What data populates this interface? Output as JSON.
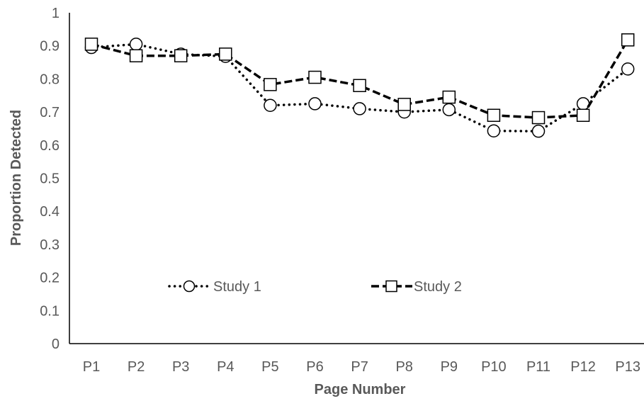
{
  "chart_data": {
    "type": "line",
    "title": "",
    "xlabel": "Page Number",
    "ylabel": "Proportion Detected",
    "ylim": [
      0,
      1
    ],
    "yticks": [
      "0",
      "0.1",
      "0.2",
      "0.3",
      "0.4",
      "0.5",
      "0.6",
      "0.7",
      "0.8",
      "0.9",
      "1"
    ],
    "categories": [
      "P1",
      "P2",
      "P3",
      "P4",
      "P5",
      "P6",
      "P7",
      "P8",
      "P9",
      "P10",
      "P11",
      "P12",
      "P13"
    ],
    "grid": false,
    "legend_position": "inside-bottom",
    "series": [
      {
        "name": "Study 1",
        "line_style": "dotted",
        "marker": "circle",
        "color": "#000000",
        "values": [
          0.895,
          0.905,
          0.875,
          0.868,
          0.72,
          0.725,
          0.71,
          0.7,
          0.707,
          0.643,
          0.642,
          0.725,
          0.83
        ]
      },
      {
        "name": "Study 2",
        "line_style": "dashed",
        "marker": "square",
        "color": "#000000",
        "values": [
          0.905,
          0.87,
          0.87,
          0.875,
          0.783,
          0.805,
          0.78,
          0.723,
          0.745,
          0.69,
          0.683,
          0.69,
          0.918
        ]
      }
    ]
  }
}
